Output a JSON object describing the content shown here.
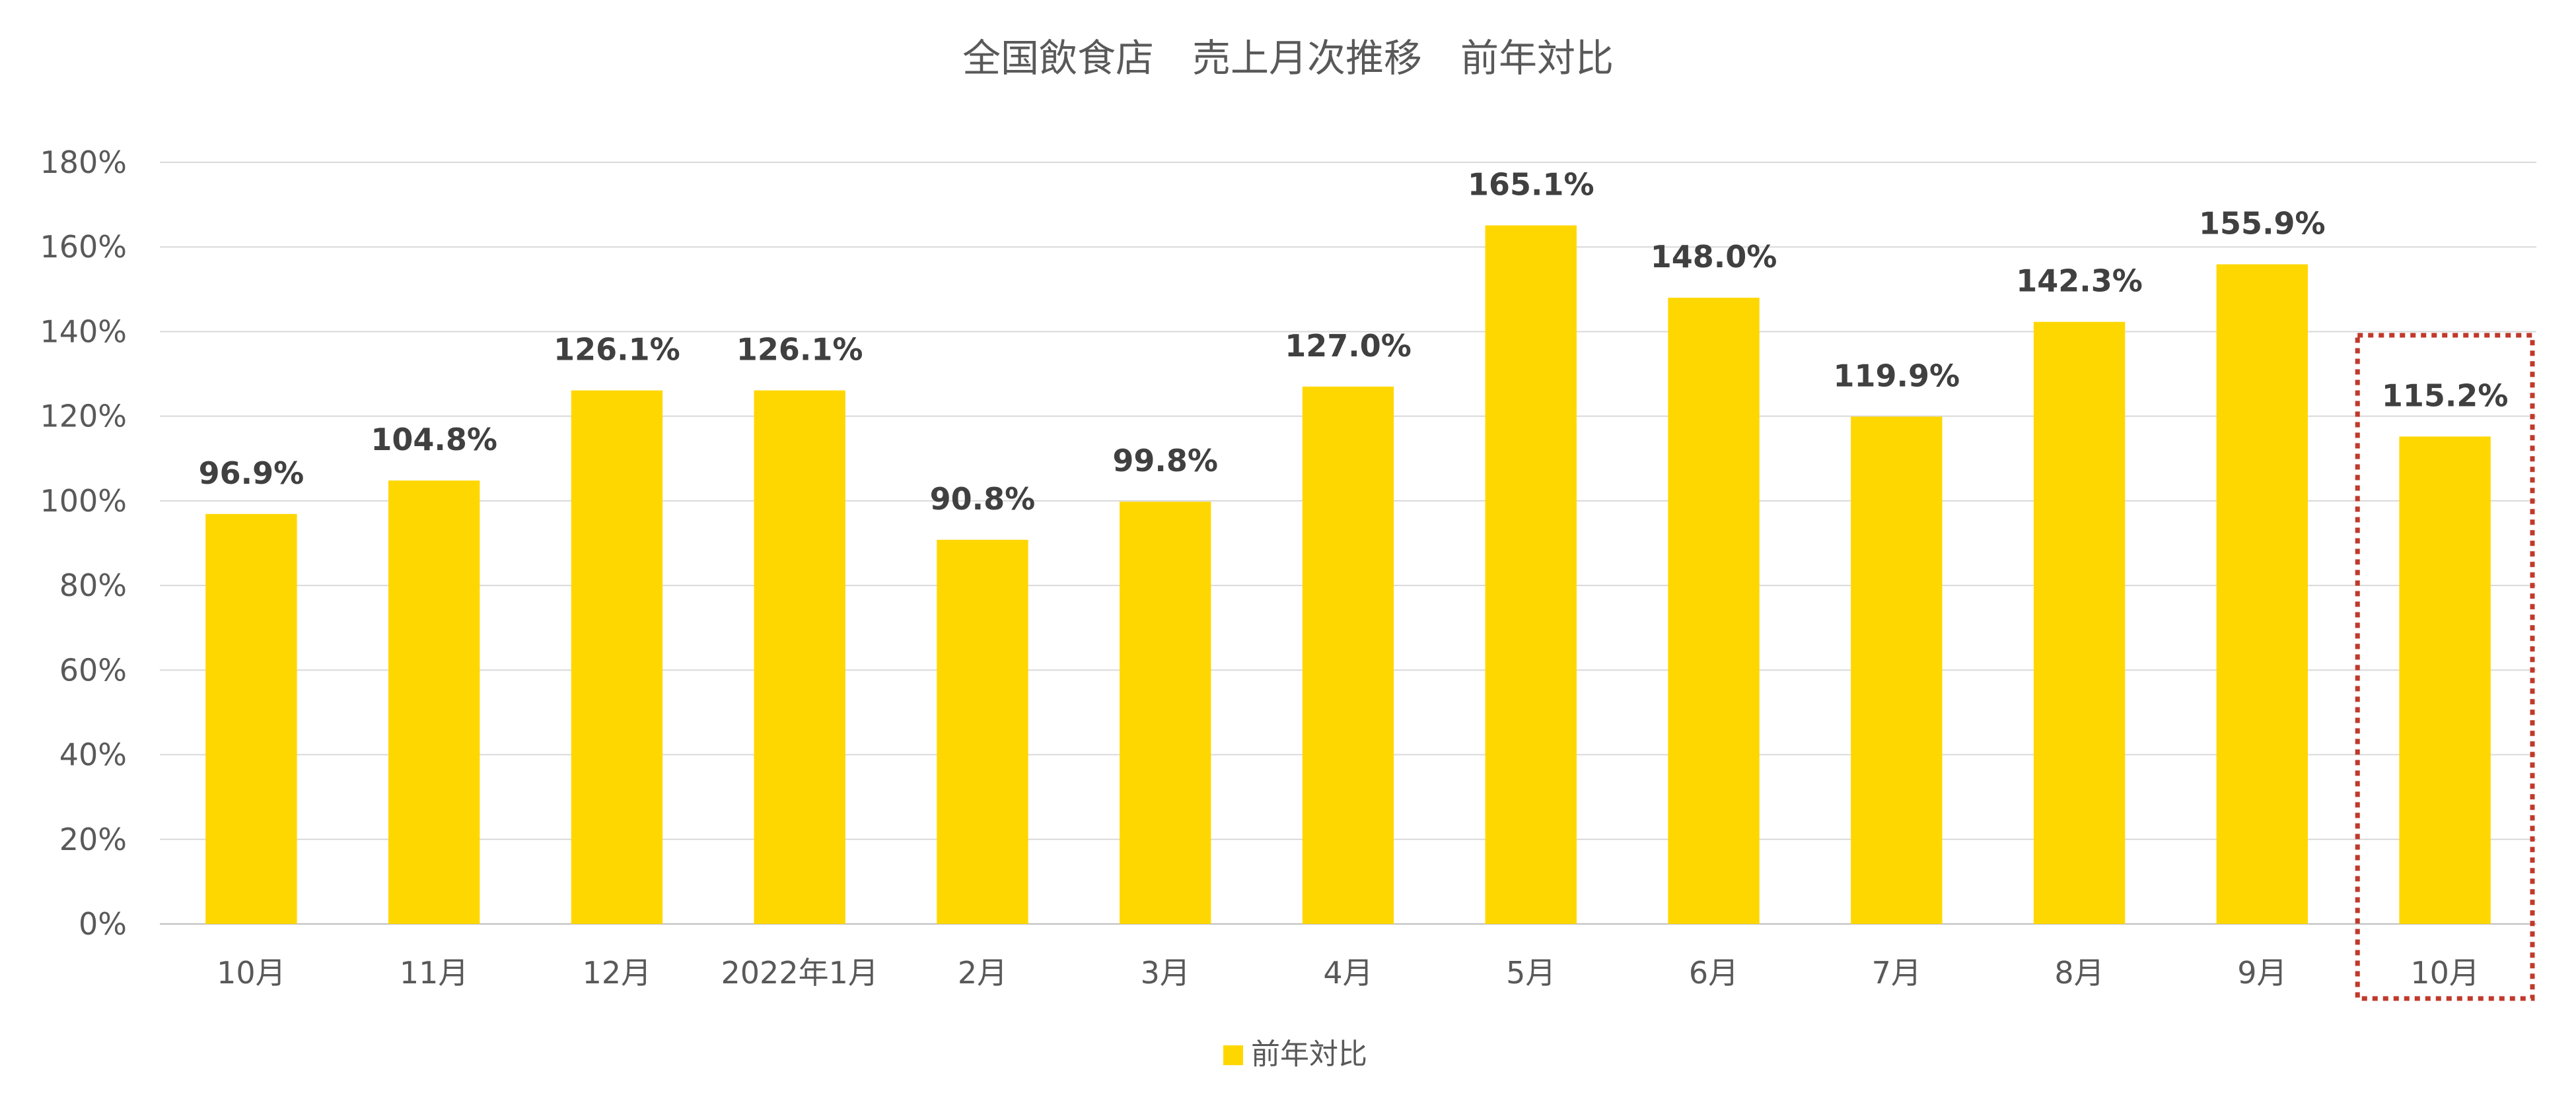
{
  "chart_data": {
    "type": "bar",
    "title": "全国飲食店　売上月次推移　前年対比",
    "xlabel": "",
    "ylabel": "",
    "categories": [
      "10月",
      "11月",
      "12月",
      "2022年1月",
      "2月",
      "3月",
      "4月",
      "5月",
      "6月",
      "7月",
      "8月",
      "9月",
      "10月"
    ],
    "series": [
      {
        "name": "前年対比",
        "values": [
          96.9,
          104.8,
          126.1,
          126.1,
          90.8,
          99.8,
          127.0,
          165.1,
          148.0,
          119.9,
          142.3,
          155.9,
          115.2
        ],
        "labels": [
          "96.9%",
          "104.8%",
          "126.1%",
          "126.1%",
          "90.8%",
          "99.8%",
          "127.0%",
          "165.1%",
          "148.0%",
          "119.9%",
          "142.3%",
          "155.9%",
          "115.2%"
        ],
        "color": "#FFD700"
      }
    ],
    "ylim": [
      0,
      180
    ],
    "y_ticks": [
      0,
      20,
      40,
      60,
      80,
      100,
      120,
      140,
      160,
      180
    ],
    "y_tick_labels": [
      "0%",
      "20%",
      "40%",
      "60%",
      "80%",
      "100%",
      "120%",
      "140%",
      "160%",
      "180%"
    ],
    "grid": true,
    "legend": {
      "position": "bottom-center",
      "entries": [
        "前年対比"
      ]
    },
    "highlight": {
      "category_index": 12,
      "color": "#C0392B",
      "style": "dotted"
    }
  }
}
